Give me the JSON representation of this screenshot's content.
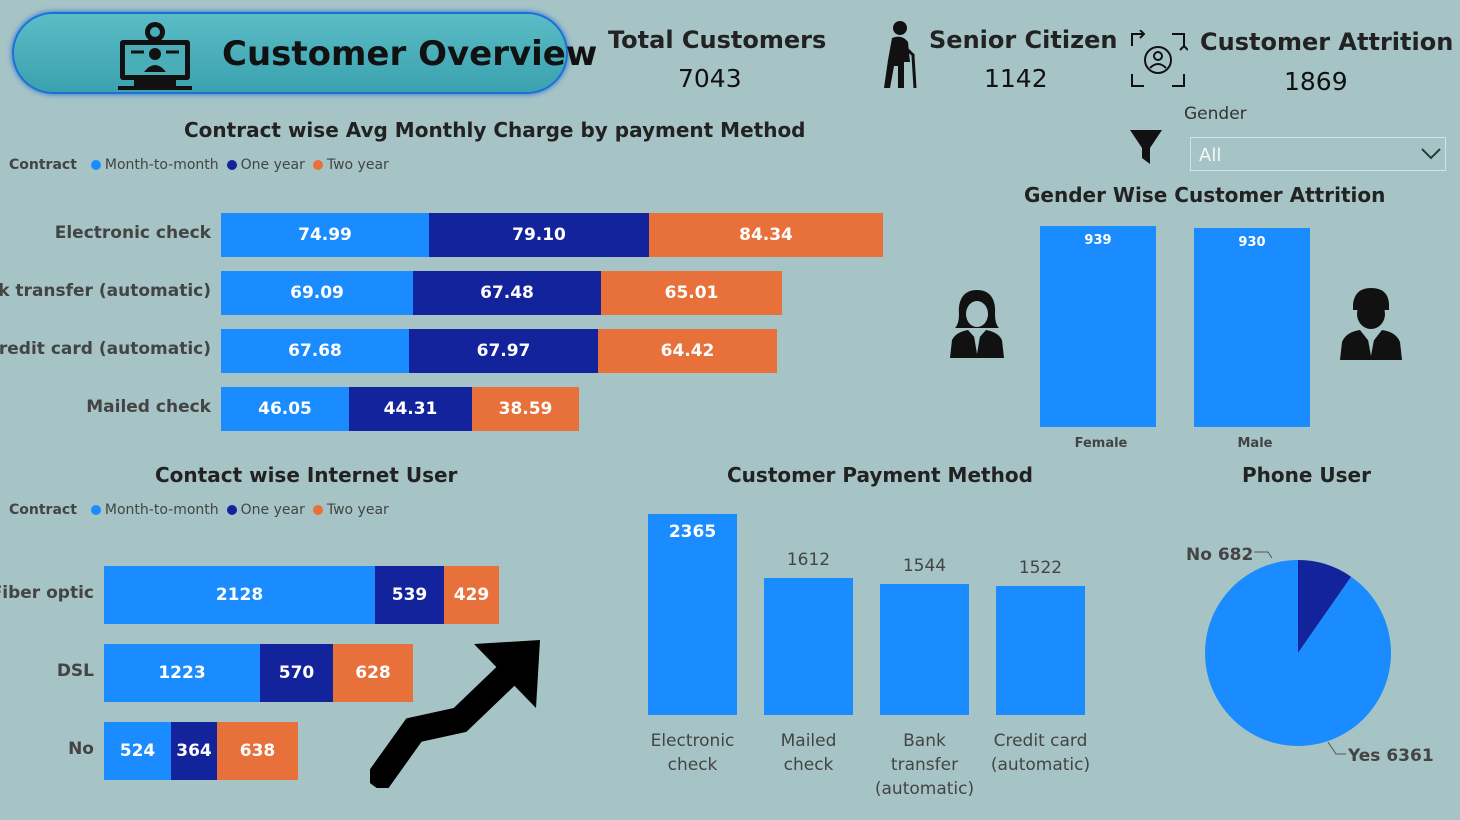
{
  "header": {
    "title": "Customer Overview",
    "kpis": [
      {
        "label": "Total Customers",
        "value": "7043"
      },
      {
        "label": "Senior Citizen",
        "value": "1142"
      },
      {
        "label": "Customer Attrition",
        "value": "1869"
      }
    ]
  },
  "filter": {
    "label": "Gender",
    "selected": "All",
    "icon": "funnel-icon"
  },
  "legend": {
    "title": "Contract",
    "items": [
      "Month-to-month",
      "One year",
      "Two year"
    ]
  },
  "colors": {
    "month_to_month": "#1a8cff",
    "one_year": "#13239c",
    "two_year": "#e8703a",
    "accent_pill": "#3aa2ae",
    "background": "#a6c4c6"
  },
  "chart_data": [
    {
      "type": "bar",
      "title": "Contract wise Avg Monthly Charge by payment Method",
      "orientation": "horizontal-stacked",
      "categories": [
        "Electronic check",
        "Bank transfer (automatic)",
        "Credit card (automatic)",
        "Mailed check"
      ],
      "series": [
        {
          "name": "Month-to-month",
          "values": [
            74.99,
            69.09,
            67.68,
            46.05
          ],
          "labels": [
            "74.99",
            "69.09",
            "67.68",
            "46.05"
          ]
        },
        {
          "name": "One year",
          "values": [
            79.1,
            67.48,
            67.97,
            44.31
          ],
          "labels": [
            "79.10",
            "67.48",
            "67.97",
            "44.31"
          ]
        },
        {
          "name": "Two year",
          "values": [
            84.34,
            65.01,
            64.42,
            38.59
          ],
          "labels": [
            "84.34",
            "65.01",
            "64.42",
            "38.59"
          ]
        }
      ],
      "legend": "top-left"
    },
    {
      "type": "bar",
      "title": "Contact wise Internet User",
      "orientation": "horizontal-stacked",
      "categories": [
        "Fiber optic",
        "DSL",
        "No"
      ],
      "series": [
        {
          "name": "Month-to-month",
          "values": [
            2128,
            1223,
            524
          ]
        },
        {
          "name": "One year",
          "values": [
            539,
            570,
            364
          ]
        },
        {
          "name": "Two year",
          "values": [
            429,
            628,
            638
          ]
        }
      ],
      "legend": "top-left"
    },
    {
      "type": "bar",
      "title": "Gender Wise Customer Attrition",
      "categories": [
        "Female",
        "Male"
      ],
      "values": [
        939,
        930
      ]
    },
    {
      "type": "bar",
      "title": "Customer Payment Method",
      "categories": [
        "Electronic check",
        "Mailed check",
        "Bank transfer (automatic)",
        "Credit card (automatic)"
      ],
      "values": [
        2365,
        1612,
        1544,
        1522
      ]
    },
    {
      "type": "pie",
      "title": "Phone User",
      "categories": [
        "No",
        "Yes"
      ],
      "values": [
        682,
        6361
      ]
    }
  ]
}
